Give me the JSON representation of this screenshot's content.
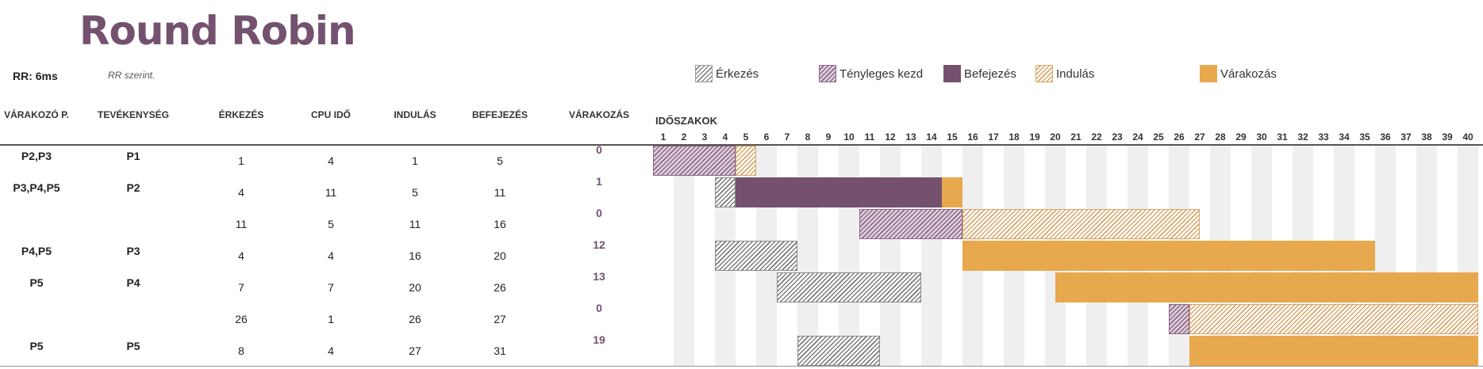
{
  "title": "Round Robin",
  "rr_label": "RR: 6ms",
  "rr_note": "RR szerint.",
  "legend": [
    {
      "label": "Érkezés",
      "style": "arrive"
    },
    {
      "label": "Tényleges kezd",
      "style": "actual"
    },
    {
      "label": "Befejezés",
      "style": "finish"
    },
    {
      "label": "Indulás",
      "style": "start"
    },
    {
      "label": "Várakozás",
      "style": "wait"
    }
  ],
  "columns": {
    "waiting": "VÁRAKOZÓ P.",
    "activity": "TEVÉKENYSÉG",
    "arrival": "ÉRKEZÉS",
    "cpu": "CPU IDŐ",
    "start": "INDULÁS",
    "finish": "BEFEJEZÉS",
    "wait": "VÁRAKOZÁS"
  },
  "periods_title": "IDŐSZAKOK",
  "periods": [
    "1",
    "2",
    "3",
    "4",
    "5",
    "6",
    "7",
    "8",
    "9",
    "10",
    "11",
    "12",
    "13",
    "14",
    "15",
    "16",
    "17",
    "18",
    "19",
    "20",
    "21",
    "22",
    "23",
    "24",
    "25",
    "26",
    "27",
    "28",
    "29",
    "30",
    "31",
    "32",
    "33",
    "34",
    "35",
    "36",
    "37",
    "38",
    "39",
    "40"
  ],
  "rows": [
    {
      "waiting": "P2,P3",
      "activity": "P1",
      "arrival": "1",
      "cpu": "4",
      "start": "1",
      "finish": "5",
      "wait": "0"
    },
    {
      "waiting": "P3,P4,P5",
      "activity": "P2",
      "arrival": "4",
      "cpu": "11",
      "start": "5",
      "finish": "11",
      "wait": "1"
    },
    {
      "waiting": "",
      "activity": "",
      "arrival": "11",
      "cpu": "5",
      "start": "11",
      "finish": "16",
      "wait": "0"
    },
    {
      "waiting": "P4,P5",
      "activity": "P3",
      "arrival": "4",
      "cpu": "4",
      "start": "16",
      "finish": "20",
      "wait": "12"
    },
    {
      "waiting": "P5",
      "activity": "P4",
      "arrival": "7",
      "cpu": "7",
      "start": "20",
      "finish": "26",
      "wait": "13"
    },
    {
      "waiting": "",
      "activity": "",
      "arrival": "26",
      "cpu": "1",
      "start": "26",
      "finish": "27",
      "wait": "0"
    },
    {
      "waiting": "P5",
      "activity": "P5",
      "arrival": "8",
      "cpu": "4",
      "start": "27",
      "finish": "31",
      "wait": "19"
    }
  ],
  "gantt_bars": [
    [
      {
        "type": "actual",
        "from": 1,
        "to": 5
      },
      {
        "type": "start",
        "from": 5,
        "to": 6
      }
    ],
    [
      {
        "type": "arrive",
        "from": 4,
        "to": 5
      },
      {
        "type": "finish",
        "from": 5,
        "to": 15
      },
      {
        "type": "wait",
        "from": 15,
        "to": 16
      }
    ],
    [
      {
        "type": "actual",
        "from": 11,
        "to": 16
      },
      {
        "type": "start",
        "from": 16,
        "to": 27.5
      }
    ],
    [
      {
        "type": "arrive",
        "from": 4,
        "to": 8
      },
      {
        "type": "wait",
        "from": 16,
        "to": 36
      }
    ],
    [
      {
        "type": "arrive",
        "from": 7,
        "to": 14
      },
      {
        "type": "wait",
        "from": 20.5,
        "to": 41
      }
    ],
    [
      {
        "type": "actual",
        "from": 26,
        "to": 27
      },
      {
        "type": "start",
        "from": 27,
        "to": 41
      }
    ],
    [
      {
        "type": "arrive",
        "from": 8,
        "to": 12
      },
      {
        "type": "wait",
        "from": 27,
        "to": 41
      }
    ]
  ]
}
